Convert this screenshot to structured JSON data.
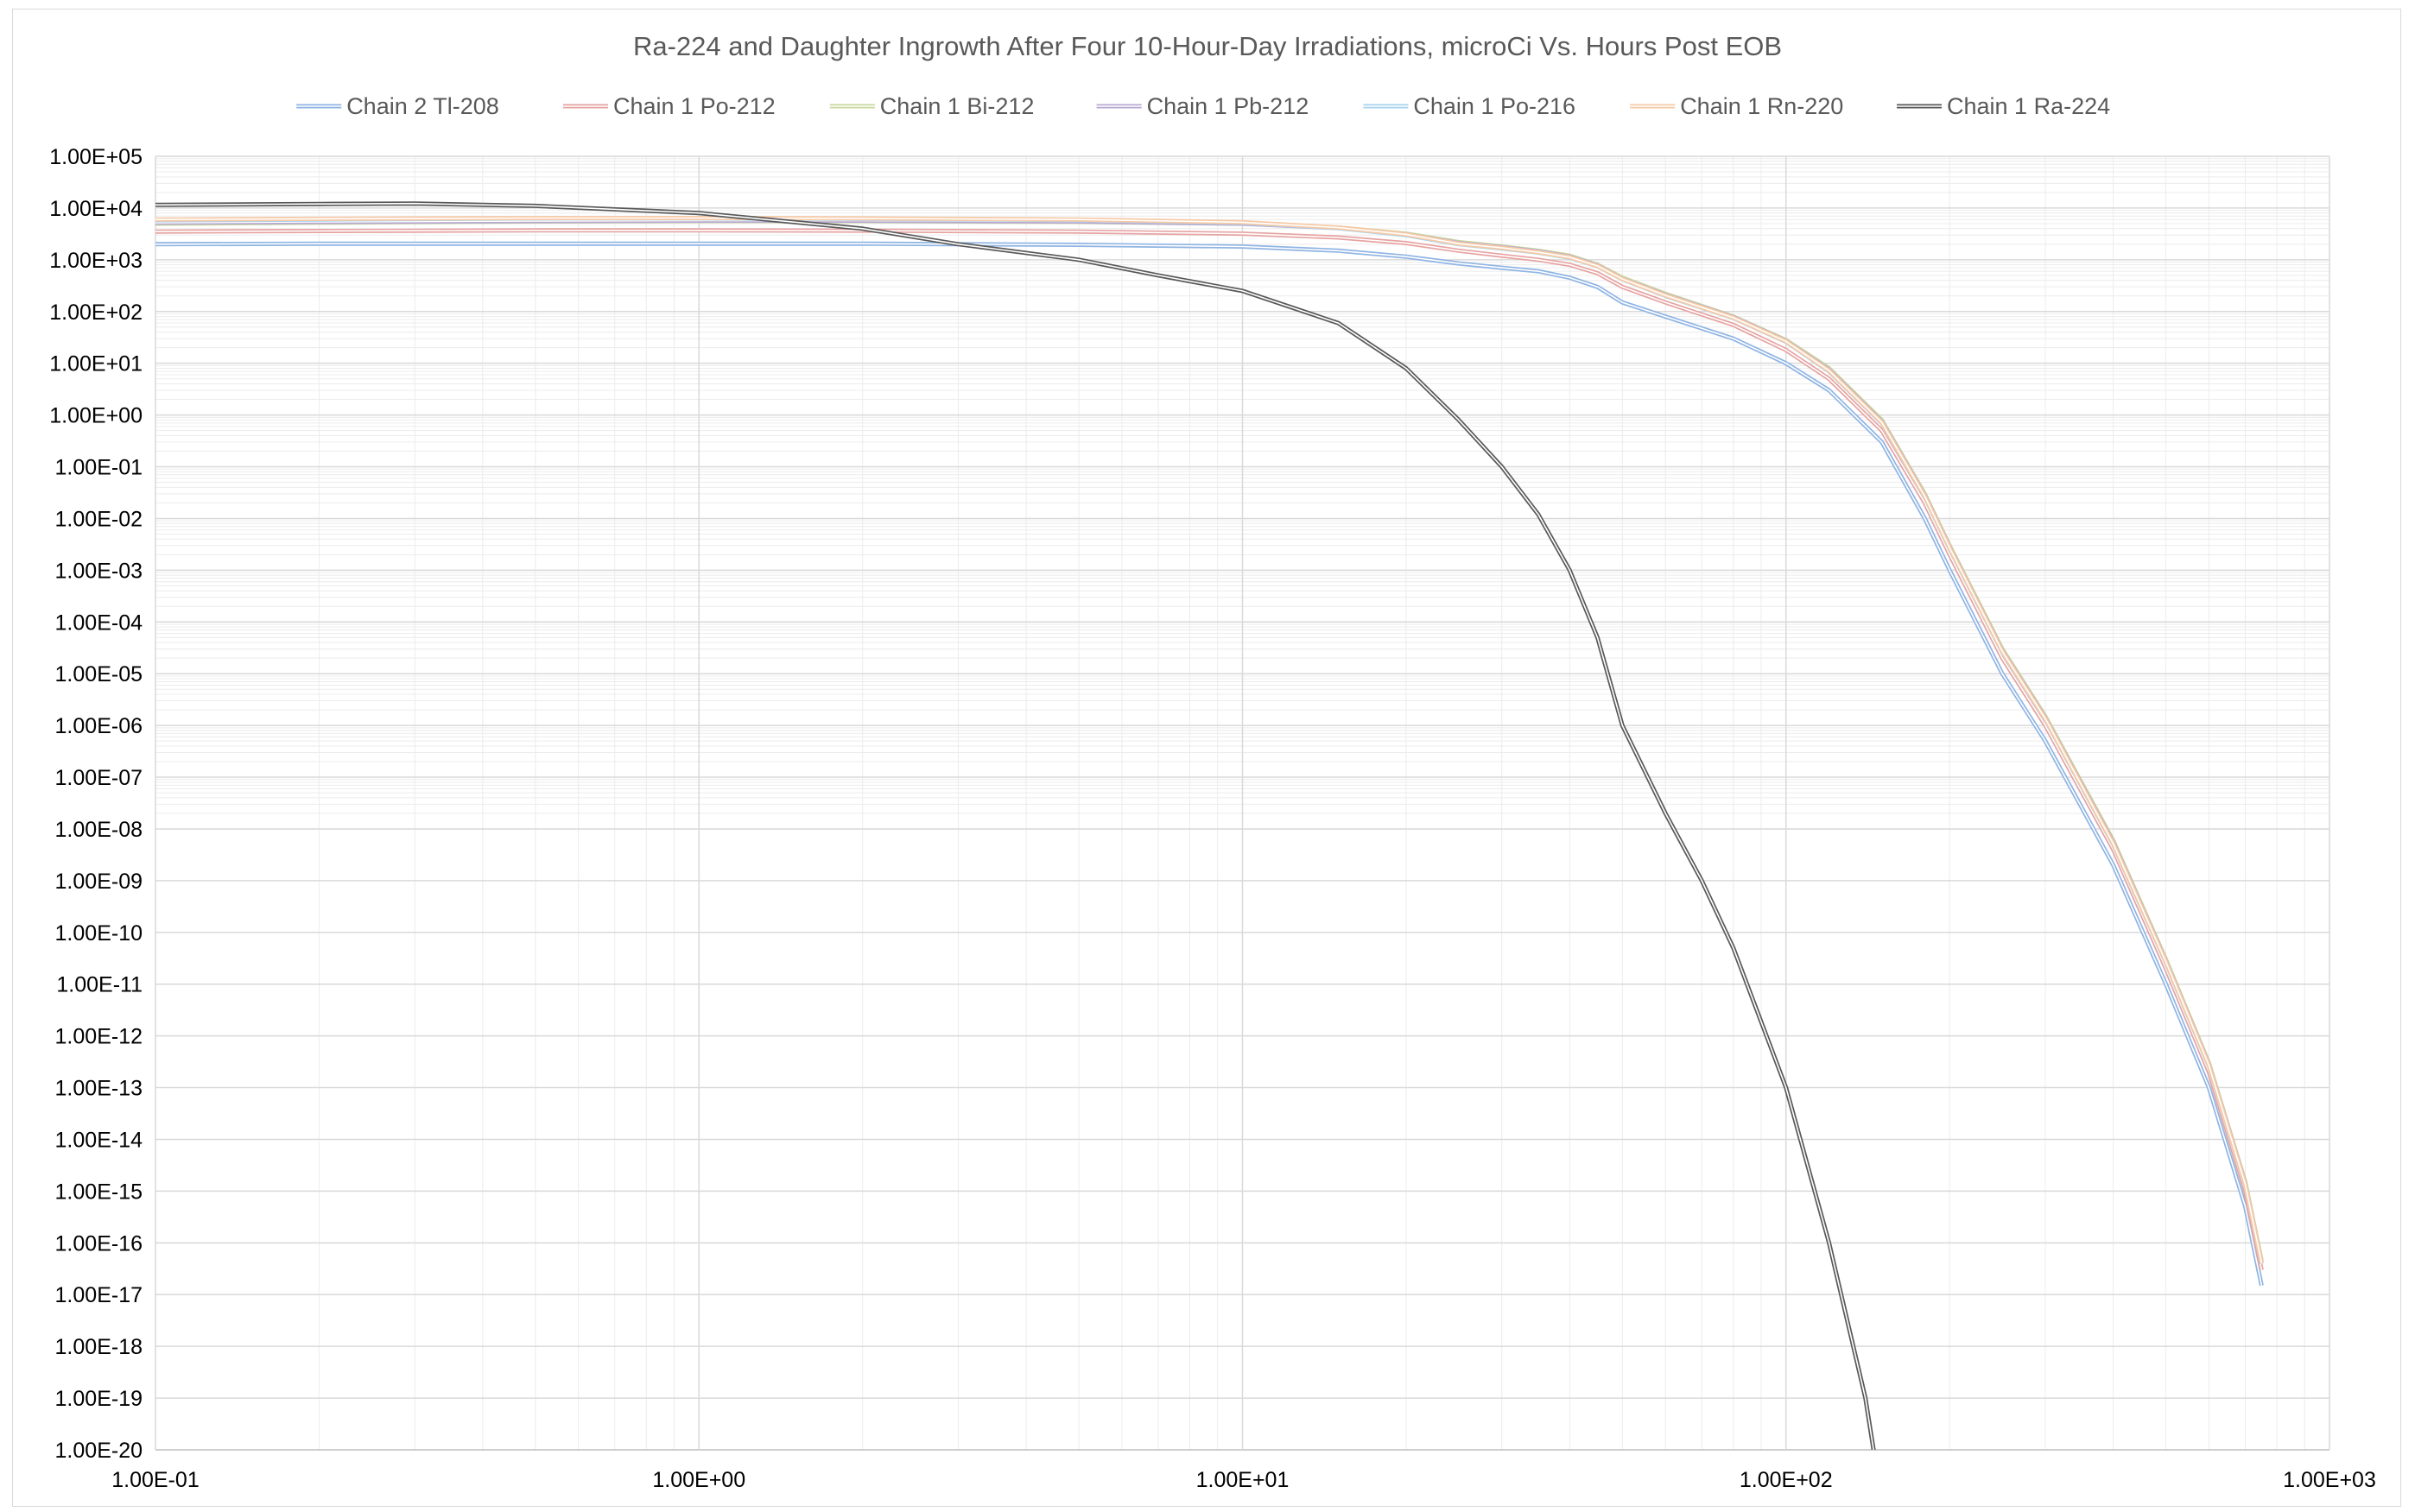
{
  "chart_data": {
    "type": "line",
    "title": "Ra-224 and Daughter Ingrowth After Four 10-Hour-Day Irradiations, microCi Vs. Hours Post EOB",
    "xlabel": "",
    "ylabel": "",
    "x_scale": "log",
    "y_scale": "log",
    "xlim": [
      0.1,
      1000
    ],
    "ylim": [
      1e-20,
      100000
    ],
    "grid": true,
    "legend_position": "top",
    "x_tick_labels": [
      "1.00E-01",
      "1.00E+00",
      "1.00E+01",
      "1.00E+02",
      "1.00E+03"
    ],
    "y_tick_labels": [
      "1.00E+05",
      "1.00E+04",
      "1.00E+03",
      "1.00E+02",
      "1.00E+01",
      "1.00E+00",
      "1.00E-01",
      "1.00E-02",
      "1.00E-03",
      "1.00E-04",
      "1.00E-05",
      "1.00E-06",
      "1.00E-07",
      "1.00E-08",
      "1.00E-09",
      "1.00E-10",
      "1.00E-11",
      "1.00E-12",
      "1.00E-13",
      "1.00E-14",
      "1.00E-15",
      "1.00E-16",
      "1.00E-17",
      "1.00E-18",
      "1.00E-19",
      "1.00E-20"
    ],
    "series": [
      {
        "name": "Chain 2 Tl-208",
        "color": "#8fb4e3",
        "points": [
          [
            0.1,
            2000
          ],
          [
            0.2,
            2050
          ],
          [
            0.5,
            2050
          ],
          [
            1,
            2050
          ],
          [
            2,
            2050
          ],
          [
            5,
            1950
          ],
          [
            10,
            1800
          ],
          [
            15,
            1500
          ],
          [
            20,
            1150
          ],
          [
            25,
            850
          ],
          [
            30,
            700
          ],
          [
            35,
            600
          ],
          [
            40,
            450
          ],
          [
            45,
            300
          ],
          [
            50,
            150
          ],
          [
            60,
            80
          ],
          [
            80,
            30
          ],
          [
            100,
            10
          ],
          [
            120,
            3
          ],
          [
            150,
            0.3
          ],
          [
            180,
            0.01
          ],
          [
            200,
            0.001
          ],
          [
            250,
            1e-05
          ],
          [
            300,
            5e-07
          ],
          [
            400,
            2e-09
          ],
          [
            500,
            1e-11
          ],
          [
            600,
            1e-13
          ],
          [
            700,
            5e-16
          ],
          [
            750,
            1.5e-17
          ]
        ]
      },
      {
        "name": "Chain 1 Po-212",
        "color": "#e6a3a2",
        "points": [
          [
            0.1,
            3500
          ],
          [
            0.2,
            3600
          ],
          [
            0.5,
            3700
          ],
          [
            1,
            3700
          ],
          [
            2,
            3650
          ],
          [
            5,
            3500
          ],
          [
            10,
            3200
          ],
          [
            15,
            2700
          ],
          [
            20,
            2100
          ],
          [
            25,
            1500
          ],
          [
            30,
            1200
          ],
          [
            35,
            1000
          ],
          [
            40,
            800
          ],
          [
            45,
            550
          ],
          [
            50,
            300
          ],
          [
            60,
            150
          ],
          [
            80,
            55
          ],
          [
            100,
            18
          ],
          [
            120,
            5
          ],
          [
            150,
            0.5
          ],
          [
            180,
            0.02
          ],
          [
            200,
            0.002
          ],
          [
            250,
            2e-05
          ],
          [
            300,
            1e-06
          ],
          [
            400,
            4e-09
          ],
          [
            500,
            2e-11
          ],
          [
            600,
            2e-13
          ],
          [
            700,
            1e-15
          ],
          [
            750,
            3e-17
          ]
        ]
      },
      {
        "name": "Chain 1 Bi-212",
        "color": "#c9d89e",
        "points": [
          [
            0.1,
            5000
          ],
          [
            0.2,
            5200
          ],
          [
            0.5,
            5500
          ],
          [
            1,
            5600
          ],
          [
            2,
            5600
          ],
          [
            5,
            5400
          ],
          [
            10,
            5000
          ],
          [
            15,
            4200
          ],
          [
            20,
            3200
          ],
          [
            25,
            2200
          ],
          [
            30,
            1800
          ],
          [
            35,
            1500
          ],
          [
            40,
            1200
          ],
          [
            45,
            800
          ],
          [
            50,
            450
          ],
          [
            60,
            220
          ],
          [
            80,
            80
          ],
          [
            100,
            28
          ],
          [
            120,
            8
          ],
          [
            150,
            0.8
          ],
          [
            180,
            0.03
          ],
          [
            200,
            0.003
          ],
          [
            250,
            3e-05
          ],
          [
            300,
            1.5e-06
          ],
          [
            400,
            6e-09
          ],
          [
            500,
            3e-11
          ],
          [
            600,
            3e-13
          ],
          [
            700,
            1.5e-15
          ],
          [
            750,
            4.5e-17
          ]
        ]
      },
      {
        "name": "Chain 1 Pb-212",
        "color": "#b8a9d3",
        "points": [
          [
            0.1,
            5200
          ],
          [
            0.2,
            5400
          ],
          [
            0.5,
            5600
          ],
          [
            1,
            5700
          ],
          [
            2,
            5700
          ],
          [
            5,
            5500
          ],
          [
            10,
            5000
          ],
          [
            15,
            4100
          ],
          [
            20,
            3100
          ],
          [
            25,
            2100
          ],
          [
            30,
            1750
          ],
          [
            35,
            1450
          ],
          [
            40,
            1150
          ],
          [
            45,
            780
          ],
          [
            50,
            430
          ],
          [
            60,
            210
          ],
          [
            80,
            78
          ],
          [
            100,
            27
          ],
          [
            120,
            7.5
          ],
          [
            150,
            0.75
          ],
          [
            180,
            0.028
          ],
          [
            200,
            0.0028
          ],
          [
            250,
            2.8e-05
          ],
          [
            300,
            1.4e-06
          ],
          [
            400,
            5.5e-09
          ],
          [
            500,
            2.8e-11
          ],
          [
            600,
            2.8e-13
          ],
          [
            700,
            1.4e-15
          ],
          [
            750,
            4.2e-17
          ]
        ]
      },
      {
        "name": "Chain 1 Po-216",
        "color": "#a6d3ee",
        "points": [
          [
            0.1,
            5800
          ],
          [
            0.2,
            6000
          ],
          [
            0.5,
            6300
          ],
          [
            1,
            6300
          ],
          [
            2,
            6200
          ],
          [
            5,
            5900
          ],
          [
            10,
            5200
          ],
          [
            15,
            4100
          ],
          [
            20,
            3000
          ],
          [
            25,
            2000
          ],
          [
            30,
            1650
          ],
          [
            35,
            1380
          ],
          [
            40,
            1100
          ],
          [
            45,
            750
          ],
          [
            50,
            420
          ],
          [
            60,
            200
          ],
          [
            80,
            75
          ],
          [
            100,
            26
          ],
          [
            120,
            7
          ],
          [
            150,
            0.7
          ],
          [
            180,
            0.026
          ],
          [
            200,
            0.0026
          ],
          [
            250,
            2.6e-05
          ],
          [
            300,
            1.3e-06
          ],
          [
            400,
            5e-09
          ],
          [
            500,
            2.6e-11
          ],
          [
            600,
            2.6e-13
          ],
          [
            700,
            1.3e-15
          ],
          [
            750,
            4e-17
          ]
        ]
      },
      {
        "name": "Chain 1 Rn-220",
        "color": "#f6c9a6",
        "points": [
          [
            0.1,
            6000
          ],
          [
            0.2,
            6200
          ],
          [
            0.5,
            6400
          ],
          [
            1,
            6400
          ],
          [
            2,
            6300
          ],
          [
            5,
            6000
          ],
          [
            10,
            5300
          ],
          [
            15,
            4200
          ],
          [
            20,
            3100
          ],
          [
            25,
            2050
          ],
          [
            30,
            1700
          ],
          [
            35,
            1400
          ],
          [
            40,
            1120
          ],
          [
            45,
            760
          ],
          [
            50,
            425
          ],
          [
            60,
            205
          ],
          [
            80,
            76
          ],
          [
            100,
            26.5
          ],
          [
            120,
            7.2
          ],
          [
            150,
            0.72
          ],
          [
            180,
            0.027
          ],
          [
            200,
            0.0027
          ],
          [
            250,
            2.7e-05
          ],
          [
            300,
            1.35e-06
          ],
          [
            400,
            5.2e-09
          ],
          [
            500,
            2.7e-11
          ],
          [
            600,
            2.7e-13
          ],
          [
            700,
            1.35e-15
          ],
          [
            750,
            4.1e-17
          ]
        ]
      },
      {
        "name": "Chain 1 Ra-224",
        "color": "#595959",
        "points": [
          [
            0.1,
            11500
          ],
          [
            0.2,
            12000
          ],
          [
            0.3,
            12200
          ],
          [
            0.5,
            11000
          ],
          [
            1,
            8000
          ],
          [
            2,
            4000
          ],
          [
            3,
            2000
          ],
          [
            5,
            1000
          ],
          [
            7,
            500
          ],
          [
            10,
            250
          ],
          [
            15,
            60
          ],
          [
            20,
            8
          ],
          [
            25,
            0.8
          ],
          [
            30,
            0.1
          ],
          [
            35,
            0.012
          ],
          [
            40,
            0.001
          ],
          [
            45,
            5e-05
          ],
          [
            50,
            1e-06
          ],
          [
            60,
            2e-08
          ],
          [
            70,
            1e-09
          ],
          [
            80,
            5e-11
          ],
          [
            100,
            1e-13
          ],
          [
            120,
            1e-16
          ],
          [
            140,
            1e-19
          ],
          [
            150,
            1e-21
          ]
        ]
      }
    ]
  }
}
